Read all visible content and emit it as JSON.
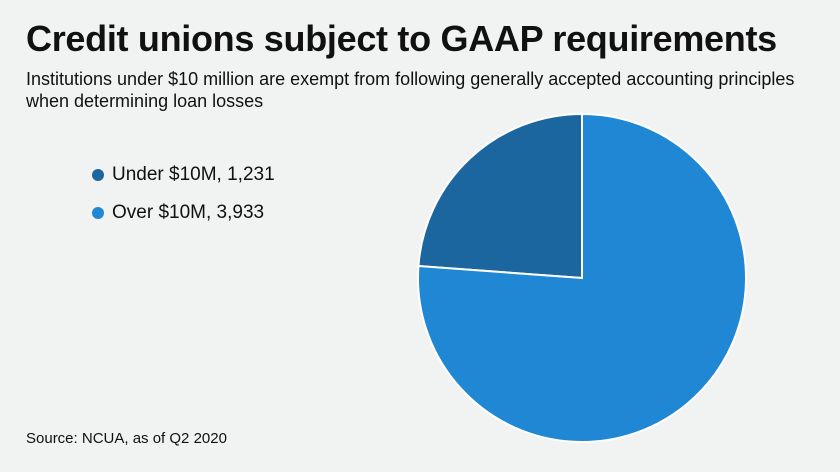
{
  "title": "Credit unions subject to GAAP requirements",
  "subtitle": "Institutions under $10 million are exempt from following generally accepted accounting principles when determining loan losses",
  "source": "Source: NCUA, as of Q2 2020",
  "chart_data": {
    "type": "pie",
    "title": "Credit unions subject to GAAP requirements",
    "legend_position": "left",
    "slices": [
      {
        "label": "Under $10M, 1,231",
        "name": "Under $10M",
        "value": 1231,
        "color": "#1c66a0"
      },
      {
        "label": "Over $10M, 3,933",
        "name": "Over $10M",
        "value": 3933,
        "color": "#1f87d4"
      }
    ],
    "slice_border_color": "#ffffff"
  }
}
